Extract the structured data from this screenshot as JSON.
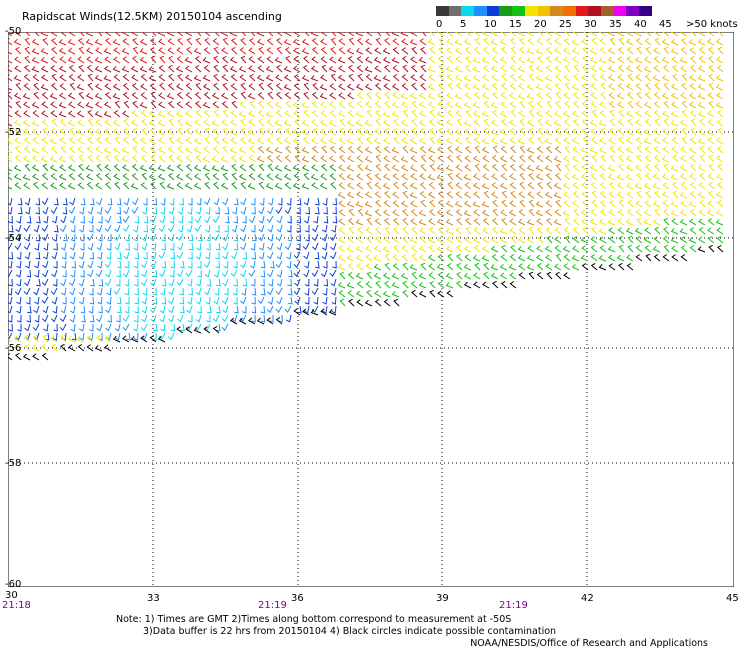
{
  "title": "Rapidscat Winds(12.5KM) 20150104 ascending",
  "legend": {
    "colors": [
      "#3a3a3a",
      "#6e6e6e",
      "#0ad8f0",
      "#1e90ff",
      "#0b3fd4",
      "#1a9c1a",
      "#13c213",
      "#f2e600",
      "#f2c200",
      "#d68a1c",
      "#f06f00",
      "#e31a1c",
      "#b01020",
      "#a0602a",
      "#f000f0",
      "#8000c0",
      "#330088"
    ],
    "labels": [
      "0",
      "5",
      "10",
      "15",
      "20",
      "25",
      "30",
      "35",
      "40",
      "45",
      ">50 knots"
    ]
  },
  "axes": {
    "lat_labels": [
      "-50",
      "-52",
      "-54",
      "-56",
      "-58",
      "-60"
    ],
    "lon_labels": [
      "30",
      "33",
      "36",
      "39",
      "42",
      "45"
    ],
    "times": [
      "21:18",
      "21:19",
      "21:19"
    ]
  },
  "notes": [
    "Note: 1) Times are GMT 2)Times along bottom correspond to measurement at -50S",
    "3)Data buffer is 22 hrs from 20150104 4) Black circles indicate possible contamination"
  ],
  "credit": "NOAA/NESDIS/Office of Research and Applications"
}
